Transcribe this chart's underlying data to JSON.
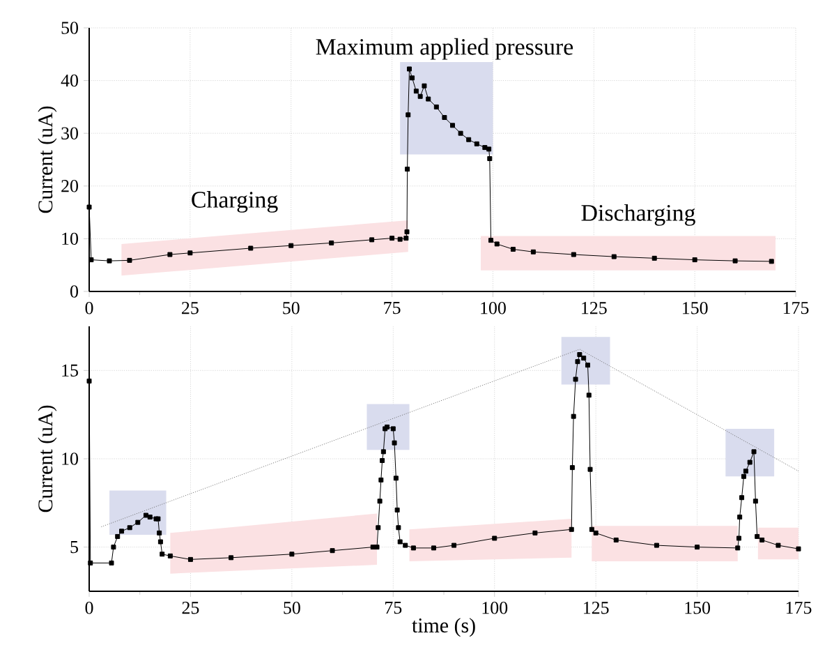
{
  "chart_data": [
    {
      "type": "line",
      "xlim": [
        0,
        175
      ],
      "xticks": [
        0,
        25,
        50,
        75,
        100,
        125,
        150,
        175
      ],
      "ylim": [
        0,
        50
      ],
      "yticks": [
        0,
        10,
        20,
        30,
        40,
        50
      ],
      "ylabel": "Current (uA)",
      "grid": true,
      "marker": "square",
      "line_style": "solid",
      "annotations": [
        "Maximum applied pressure",
        "Charging",
        "Discharging"
      ],
      "series": [
        {
          "color": "#000000",
          "x": [
            0,
            0.5,
            5,
            10,
            20,
            25,
            40,
            50,
            60,
            70,
            75,
            77,
            78.5,
            78.7,
            78.8,
            79,
            79.3,
            80,
            81,
            82,
            83,
            84,
            86,
            88,
            90,
            92,
            94,
            96,
            98,
            99,
            99.2,
            99.5,
            101,
            105,
            110,
            120,
            130,
            140,
            150,
            160,
            169
          ],
          "values": [
            16,
            6,
            5.8,
            5.9,
            7,
            7.3,
            8.2,
            8.7,
            9.2,
            9.8,
            10.1,
            9.9,
            10.1,
            11.3,
            23.2,
            33.5,
            42.2,
            40.5,
            38,
            37,
            39,
            36.5,
            35,
            33,
            31.5,
            30,
            28.8,
            28,
            27.3,
            27,
            25.2,
            9.7,
            9,
            8,
            7.5,
            7,
            6.6,
            6.3,
            6,
            5.8,
            5.7
          ]
        }
      ]
    },
    {
      "type": "line",
      "xlim": [
        0,
        175
      ],
      "xticks": [
        0,
        25,
        50,
        75,
        100,
        125,
        150,
        175
      ],
      "ylim": [
        2.5,
        17.5
      ],
      "yticks": [
        5,
        10,
        15
      ],
      "xlabel": "time (s)",
      "ylabel": "Current (uA)",
      "grid": true,
      "marker": "square",
      "line_style": "solid",
      "series": [
        {
          "color": "#000000",
          "x": [
            0,
            0.3,
            5.5,
            6,
            7,
            8,
            10,
            12,
            14,
            15,
            16.5,
            17,
            17.3,
            17.6,
            18,
            20,
            25,
            35,
            50,
            60,
            70,
            71,
            71.3,
            71.7,
            72,
            72.3,
            72.6,
            73,
            73.5,
            75,
            75.3,
            75.7,
            76,
            76.3,
            76.7,
            78,
            80,
            85,
            90,
            100,
            110,
            119,
            119.2,
            119.5,
            120,
            120.5,
            121,
            122,
            123,
            123.3,
            123.6,
            124,
            125,
            130,
            140,
            150,
            160,
            160.3,
            160.5,
            161,
            161.5,
            162,
            163,
            164,
            164.4,
            164.8,
            166,
            170,
            175
          ],
          "values": [
            14.4,
            4.1,
            4.1,
            5,
            5.6,
            5.9,
            6.1,
            6.4,
            6.8,
            6.7,
            6.6,
            6.6,
            5.8,
            5.3,
            4.6,
            4.5,
            4.3,
            4.4,
            4.6,
            4.8,
            5,
            5,
            6.1,
            7.6,
            8.8,
            9.9,
            10.4,
            11.7,
            11.8,
            11.7,
            10.9,
            8.9,
            7.1,
            6.1,
            5.3,
            5.1,
            4.95,
            4.95,
            5.1,
            5.5,
            5.8,
            6,
            9.5,
            12.4,
            14.5,
            15.5,
            15.9,
            15.7,
            15.3,
            13.6,
            9.4,
            6,
            5.8,
            5.4,
            5.1,
            5,
            4.95,
            5.5,
            6.7,
            7.8,
            9,
            9.3,
            9.8,
            10.4,
            7.6,
            5.6,
            5.4,
            5.1,
            4.9
          ]
        },
        {
          "type": "line",
          "color": "#666666",
          "marker": "none",
          "line_style": "dotted",
          "x": [
            3,
            121,
            175
          ],
          "values": [
            6.15,
            16.2,
            9.3
          ]
        }
      ]
    }
  ]
}
